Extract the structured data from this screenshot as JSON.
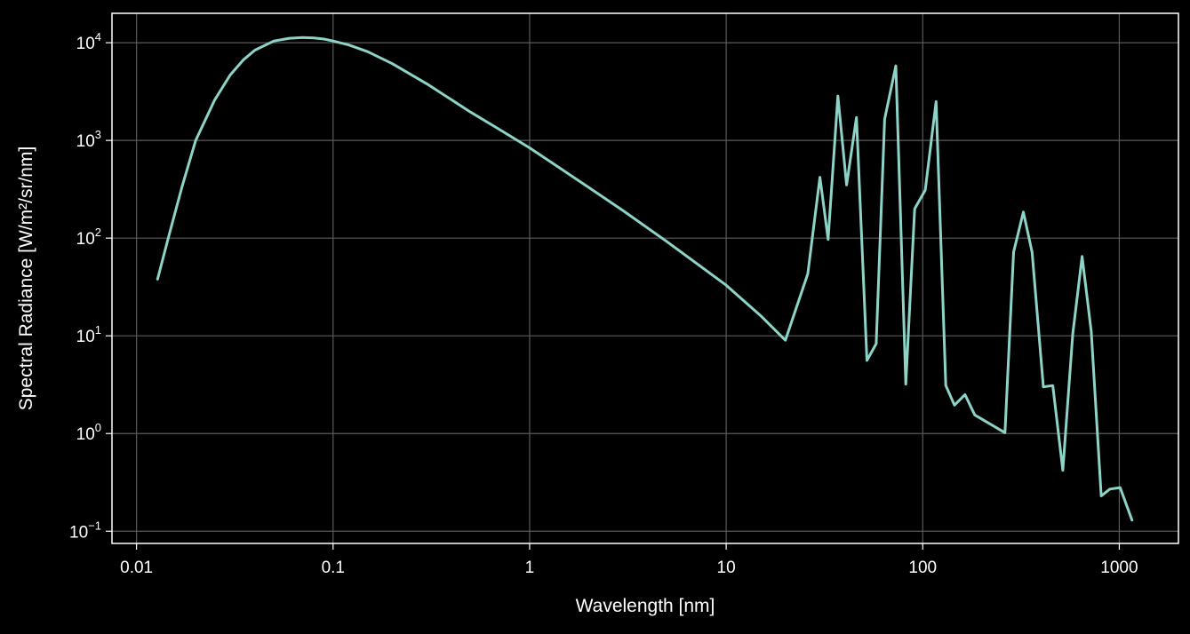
{
  "chart_data": {
    "type": "line",
    "title": "",
    "xlabel": "Wavelength [nm]",
    "ylabel": "Spectral Radiance [W/m²/sr/nm]",
    "xscale": "log",
    "yscale": "log",
    "xlim": [
      0.0075,
      2000
    ],
    "ylim": [
      0.075,
      20000
    ],
    "grid": true,
    "legend": "none",
    "colors": {
      "background": "#000000",
      "axes": "#ffffff",
      "grid": "#5a5a5a",
      "line": "#8dd3c7"
    },
    "x_ticks": [
      {
        "value": 0.01,
        "label": "0.01"
      },
      {
        "value": 0.1,
        "label": "0.1"
      },
      {
        "value": 1,
        "label": "1"
      },
      {
        "value": 10,
        "label": "10"
      },
      {
        "value": 100,
        "label": "100"
      },
      {
        "value": 1000,
        "label": "1000"
      }
    ],
    "y_ticks": [
      {
        "value": 0.1,
        "base": "10",
        "exp": "−1"
      },
      {
        "value": 1,
        "base": "10",
        "exp": "0"
      },
      {
        "value": 10,
        "base": "10",
        "exp": "1"
      },
      {
        "value": 100,
        "base": "10",
        "exp": "2"
      },
      {
        "value": 1000,
        "base": "10",
        "exp": "3"
      },
      {
        "value": 10000,
        "base": "10",
        "exp": "4"
      }
    ],
    "series": [
      {
        "x": [
          0.0128,
          0.0145,
          0.017,
          0.02,
          0.025,
          0.03,
          0.035,
          0.04,
          0.05,
          0.06,
          0.07,
          0.08,
          0.09,
          0.1,
          0.12,
          0.15,
          0.2,
          0.3,
          0.5,
          0.7,
          1.0,
          2.0,
          3.0,
          5.0,
          10.0,
          15.0,
          20.0,
          26.0,
          30.0,
          33.0,
          37.0,
          41.0,
          46.0,
          52.0,
          58.0,
          64.0,
          73.0,
          82.0,
          91.0,
          103.0,
          117.0,
          131.0,
          145.0,
          164.0,
          184.0,
          262.0,
          290.0,
          325.0,
          360.0,
          411.0,
          459.0,
          516.0,
          580.0,
          647.0,
          720.0,
          809.0,
          895.0,
          1010.0,
          1160.0
        ],
        "y": [
          38,
          100,
          330,
          1000,
          2600,
          4700,
          6700,
          8400,
          10400,
          11100,
          11300,
          11200,
          10900,
          10400,
          9500,
          8100,
          6100,
          3800,
          1950,
          1300,
          840,
          330,
          190,
          92,
          33,
          16,
          9,
          43,
          420,
          97,
          2850,
          350,
          1720,
          5.6,
          8.3,
          1650,
          5800,
          3.2,
          200,
          310,
          2500,
          3.1,
          1.95,
          2.5,
          1.55,
          1.02,
          72,
          185,
          72,
          3.0,
          3.1,
          0.42,
          10.5,
          65,
          11,
          0.23,
          0.27,
          0.28,
          0.13
        ]
      }
    ]
  }
}
